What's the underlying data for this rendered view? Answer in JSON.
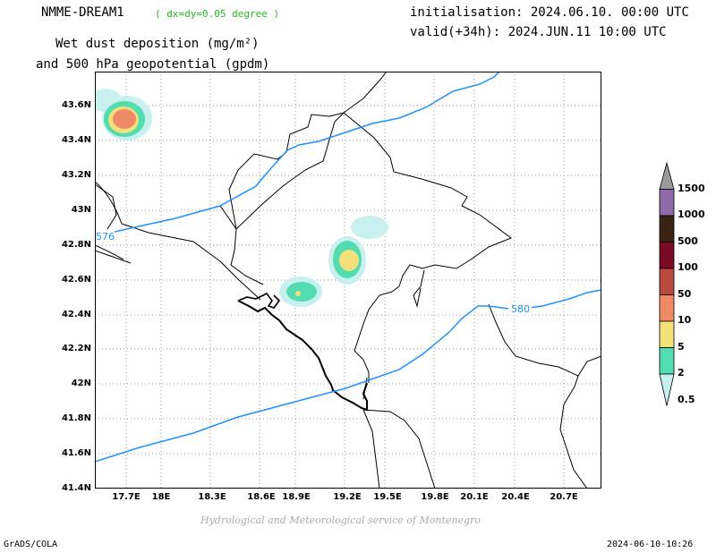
{
  "header": {
    "model": "NMME-DREAM1",
    "resolution": "( dx=dy=0.05 degree )",
    "variable_line1": "Wet dust deposition (mg/m²)",
    "variable_line2": "and 500 hPa geopotential (gpdm)",
    "initialisation": "initialisation: 2024.06.10. 00:00 UTC",
    "valid": "valid(+34h): 2024.JUN.11 10:00 UTC"
  },
  "axes": {
    "y_ticks": [
      "43.6N",
      "43.4N",
      "43.2N",
      "43N",
      "42.8N",
      "42.6N",
      "42.4N",
      "42.2N",
      "42N",
      "41.8N",
      "41.6N",
      "41.4N"
    ],
    "x_ticks": [
      "17.7E",
      "18E",
      "18.3E",
      "18.6E",
      "18.9E",
      "19.2E",
      "19.5E",
      "19.8E",
      "20.1E",
      "20.4E",
      "20.7E"
    ]
  },
  "contours": {
    "label_576": "576",
    "label_580": "580",
    "color": "#1e90ff"
  },
  "colorbar": {
    "labels": [
      "1500",
      "1000",
      "500",
      "100",
      "50",
      "10",
      "5",
      "2",
      "0.5"
    ],
    "colors": [
      "#9a9a9a",
      "#8e6aa8",
      "#3b2314",
      "#7a0a25",
      "#b94a3f",
      "#ef8a66",
      "#f2e07a",
      "#52dcb0",
      "#c8f0ee"
    ]
  },
  "credit": "Hydrological and Meteorological service of Montenegro",
  "footer": {
    "left": "GrADS/COLA",
    "right": "2024-06-10-10:26"
  }
}
